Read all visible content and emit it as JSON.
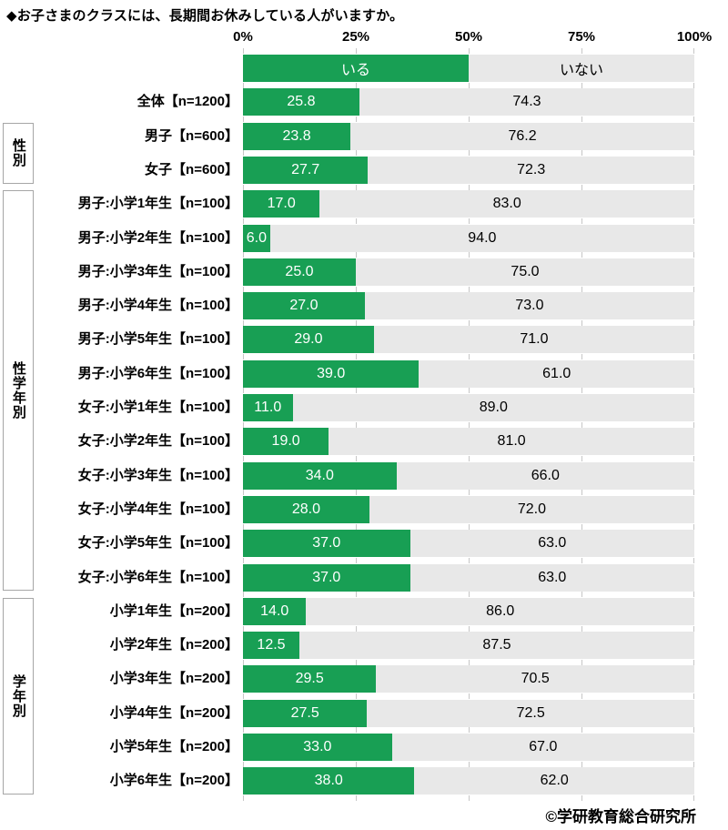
{
  "title": "◆お子さまのクラスには、長期間お休みしている人がいますか。",
  "source": "©学研教育総合研究所",
  "chart_data": {
    "type": "bar",
    "orientation": "horizontal-stacked",
    "title": "◆お子さまのクラスには、長期間お休みしている人がいますか。",
    "legend": [
      "いる",
      "いない"
    ],
    "legend_position": "header-row-above-bars",
    "x_ticks": [
      "0%",
      "25%",
      "50%",
      "75%",
      "100%"
    ],
    "x_range": [
      0,
      100
    ],
    "grid": "tick-marks-between-rows",
    "colors": {
      "iru": "#189F54",
      "inai": "#E8E8E8",
      "tick": "#C6C6C6",
      "box_border": "#A6A6A6"
    },
    "series_names": [
      "いる",
      "いない"
    ],
    "groups": [
      {
        "label": "",
        "start": 0,
        "count": 1
      },
      {
        "label": "性別",
        "start": 1,
        "count": 2
      },
      {
        "label": "性学年別",
        "start": 3,
        "count": 12
      },
      {
        "label": "学年別",
        "start": 15,
        "count": 6
      }
    ],
    "rows": [
      {
        "label": "全体【n=1200】",
        "iru": 25.8,
        "inai": 74.3
      },
      {
        "label": "男子【n=600】",
        "iru": 23.8,
        "inai": 76.2
      },
      {
        "label": "女子【n=600】",
        "iru": 27.7,
        "inai": 72.3
      },
      {
        "label": "男子:小学1年生【n=100】",
        "iru": 17.0,
        "inai": 83.0
      },
      {
        "label": "男子:小学2年生【n=100】",
        "iru": 6.0,
        "inai": 94.0
      },
      {
        "label": "男子:小学3年生【n=100】",
        "iru": 25.0,
        "inai": 75.0
      },
      {
        "label": "男子:小学4年生【n=100】",
        "iru": 27.0,
        "inai": 73.0
      },
      {
        "label": "男子:小学5年生【n=100】",
        "iru": 29.0,
        "inai": 71.0
      },
      {
        "label": "男子:小学6年生【n=100】",
        "iru": 39.0,
        "inai": 61.0
      },
      {
        "label": "女子:小学1年生【n=100】",
        "iru": 11.0,
        "inai": 89.0
      },
      {
        "label": "女子:小学2年生【n=100】",
        "iru": 19.0,
        "inai": 81.0
      },
      {
        "label": "女子:小学3年生【n=100】",
        "iru": 34.0,
        "inai": 66.0
      },
      {
        "label": "女子:小学4年生【n=100】",
        "iru": 28.0,
        "inai": 72.0
      },
      {
        "label": "女子:小学5年生【n=100】",
        "iru": 37.0,
        "inai": 63.0
      },
      {
        "label": "女子:小学6年生【n=100】",
        "iru": 37.0,
        "inai": 63.0
      },
      {
        "label": "小学1年生【n=200】",
        "iru": 14.0,
        "inai": 86.0
      },
      {
        "label": "小学2年生【n=200】",
        "iru": 12.5,
        "inai": 87.5
      },
      {
        "label": "小学3年生【n=200】",
        "iru": 29.5,
        "inai": 70.5
      },
      {
        "label": "小学4年生【n=200】",
        "iru": 27.5,
        "inai": 72.5
      },
      {
        "label": "小学5年生【n=200】",
        "iru": 33.0,
        "inai": 67.0
      },
      {
        "label": "小学6年生【n=200】",
        "iru": 38.0,
        "inai": 62.0
      }
    ]
  }
}
